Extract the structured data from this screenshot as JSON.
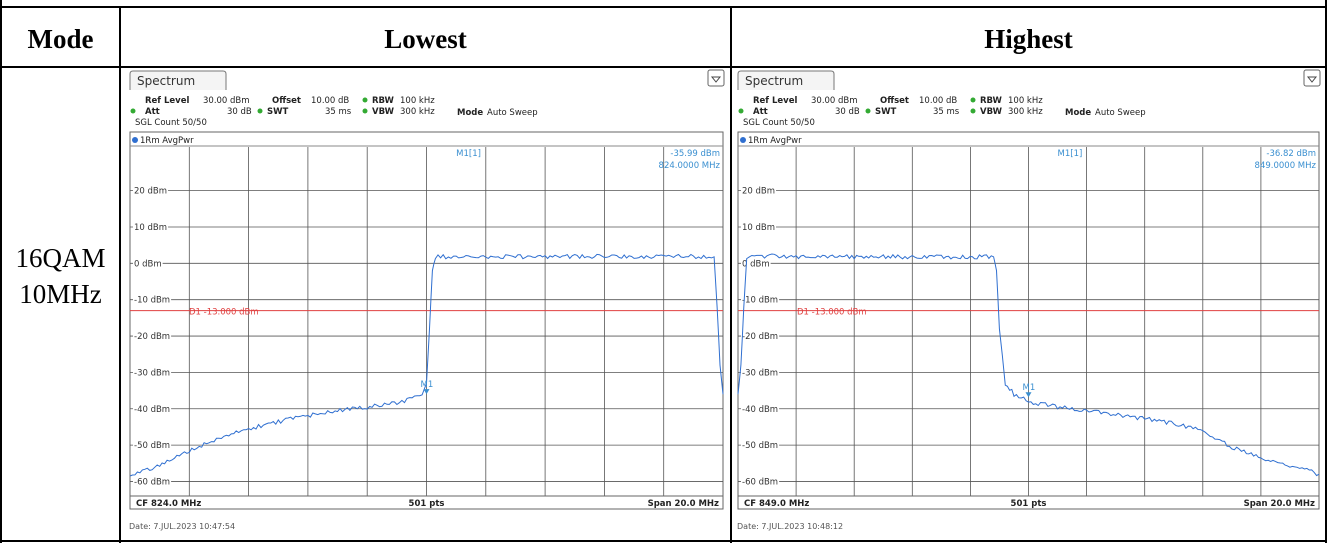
{
  "table": {
    "headers": [
      "Mode",
      "Lowest",
      "Highest"
    ],
    "mode": [
      "16QAM",
      "10MHz"
    ]
  },
  "chart_data": [
    {
      "type": "line",
      "tab": "Spectrum",
      "ref_level_label": "Ref Level",
      "ref_level": "30.00 dBm",
      "offset_label": "Offset",
      "offset": "10.00 dB",
      "rbw_label": "RBW",
      "rbw": "100 kHz",
      "att_label": "Att",
      "att": "30 dB",
      "swt_label": "SWT",
      "swt": "35 ms",
      "vbw_label": "VBW",
      "vbw": "300 kHz",
      "mode_label": "Mode",
      "mode": "Auto Sweep",
      "sgl_count": "SGL Count 50/50",
      "trace_label": "1Rm AvgPwr",
      "marker_label": "M1[1]",
      "marker_value": "-35.99 dBm",
      "marker_freq": "824.0000 MHz",
      "marker_tag": "M1",
      "marker_x": 824.0,
      "marker_y": -35.99,
      "limit_label": "D1 -13.000 dBm",
      "limit": -13.0,
      "yticks": [
        20,
        10,
        0,
        -10,
        -20,
        -30,
        -40,
        -50,
        -60
      ],
      "ytick_labels": [
        "20 dBm",
        "10 dBm",
        "0 dBm",
        "-10 dBm",
        "-20 dBm",
        "-30 dBm",
        "-40 dBm",
        "-50 dBm",
        "-60 dBm"
      ],
      "ylim": [
        -64,
        32
      ],
      "xlim": [
        814.0,
        834.0
      ],
      "footer_left": "CF 824.0 MHz",
      "footer_mid": "501 pts",
      "footer_right": "Span 20.0 MHz",
      "date": "Date: 7.JUL.2023  10:47:54",
      "x": [
        814.0,
        815.0,
        816.0,
        817.0,
        818.0,
        819.0,
        820.0,
        821.0,
        822.0,
        823.0,
        823.6,
        823.85,
        824.0,
        824.1,
        824.2,
        824.3,
        825.0,
        827.0,
        829.0,
        831.0,
        832.0,
        833.0,
        833.7,
        833.8,
        833.9,
        834.0
      ],
      "y": [
        -58.5,
        -55.5,
        -51.5,
        -48.0,
        -45.5,
        -43.5,
        -42.0,
        -40.5,
        -39.5,
        -38.5,
        -37.0,
        -36.2,
        -33.0,
        -18.0,
        -2.0,
        1.8,
        1.8,
        1.8,
        1.9,
        1.8,
        1.8,
        1.9,
        1.8,
        -12.0,
        -28.0,
        -36.0
      ]
    },
    {
      "type": "line",
      "tab": "Spectrum",
      "ref_level_label": "Ref Level",
      "ref_level": "30.00 dBm",
      "offset_label": "Offset",
      "offset": "10.00 dB",
      "rbw_label": "RBW",
      "rbw": "100 kHz",
      "att_label": "Att",
      "att": "30 dB",
      "swt_label": "SWT",
      "swt": "35 ms",
      "vbw_label": "VBW",
      "vbw": "300 kHz",
      "mode_label": "Mode",
      "mode": "Auto Sweep",
      "sgl_count": "SGL Count 50/50",
      "trace_label": "1Rm AvgPwr",
      "marker_label": "M1[1]",
      "marker_value": "-36.82 dBm",
      "marker_freq": "849.0000 MHz",
      "marker_tag": "M1",
      "marker_x": 849.0,
      "marker_y": -36.82,
      "limit_label": "D1 -13.000 dBm",
      "limit": -13.0,
      "yticks": [
        20,
        10,
        0,
        -10,
        -20,
        -30,
        -40,
        -50,
        -60
      ],
      "ytick_labels": [
        "20 dBm",
        "10 dBm",
        "0 dBm",
        "-10 dBm",
        "-20 dBm",
        "-30 dBm",
        "-40 dBm",
        "-50 dBm",
        "-60 dBm"
      ],
      "ylim": [
        -64,
        32
      ],
      "xlim": [
        839.0,
        859.0
      ],
      "footer_left": "CF 849.0 MHz",
      "footer_mid": "501 pts",
      "footer_right": "Span 20.0 MHz",
      "date": "Date: 7.JUL.2023  10:48:12",
      "x": [
        839.0,
        839.1,
        839.2,
        839.3,
        840.0,
        842.0,
        844.0,
        846.0,
        847.8,
        847.9,
        848.0,
        848.2,
        848.5,
        849.0,
        850.0,
        852.0,
        854.0,
        855.0,
        856.0,
        857.0,
        858.0,
        859.0
      ],
      "y": [
        -36.0,
        -28.0,
        -12.0,
        1.9,
        2.0,
        1.8,
        1.8,
        1.8,
        1.8,
        -2.0,
        -18.0,
        -33.0,
        -36.0,
        -38.0,
        -39.5,
        -41.5,
        -44.0,
        -46.0,
        -50.5,
        -53.5,
        -55.5,
        -58.0
      ]
    }
  ]
}
